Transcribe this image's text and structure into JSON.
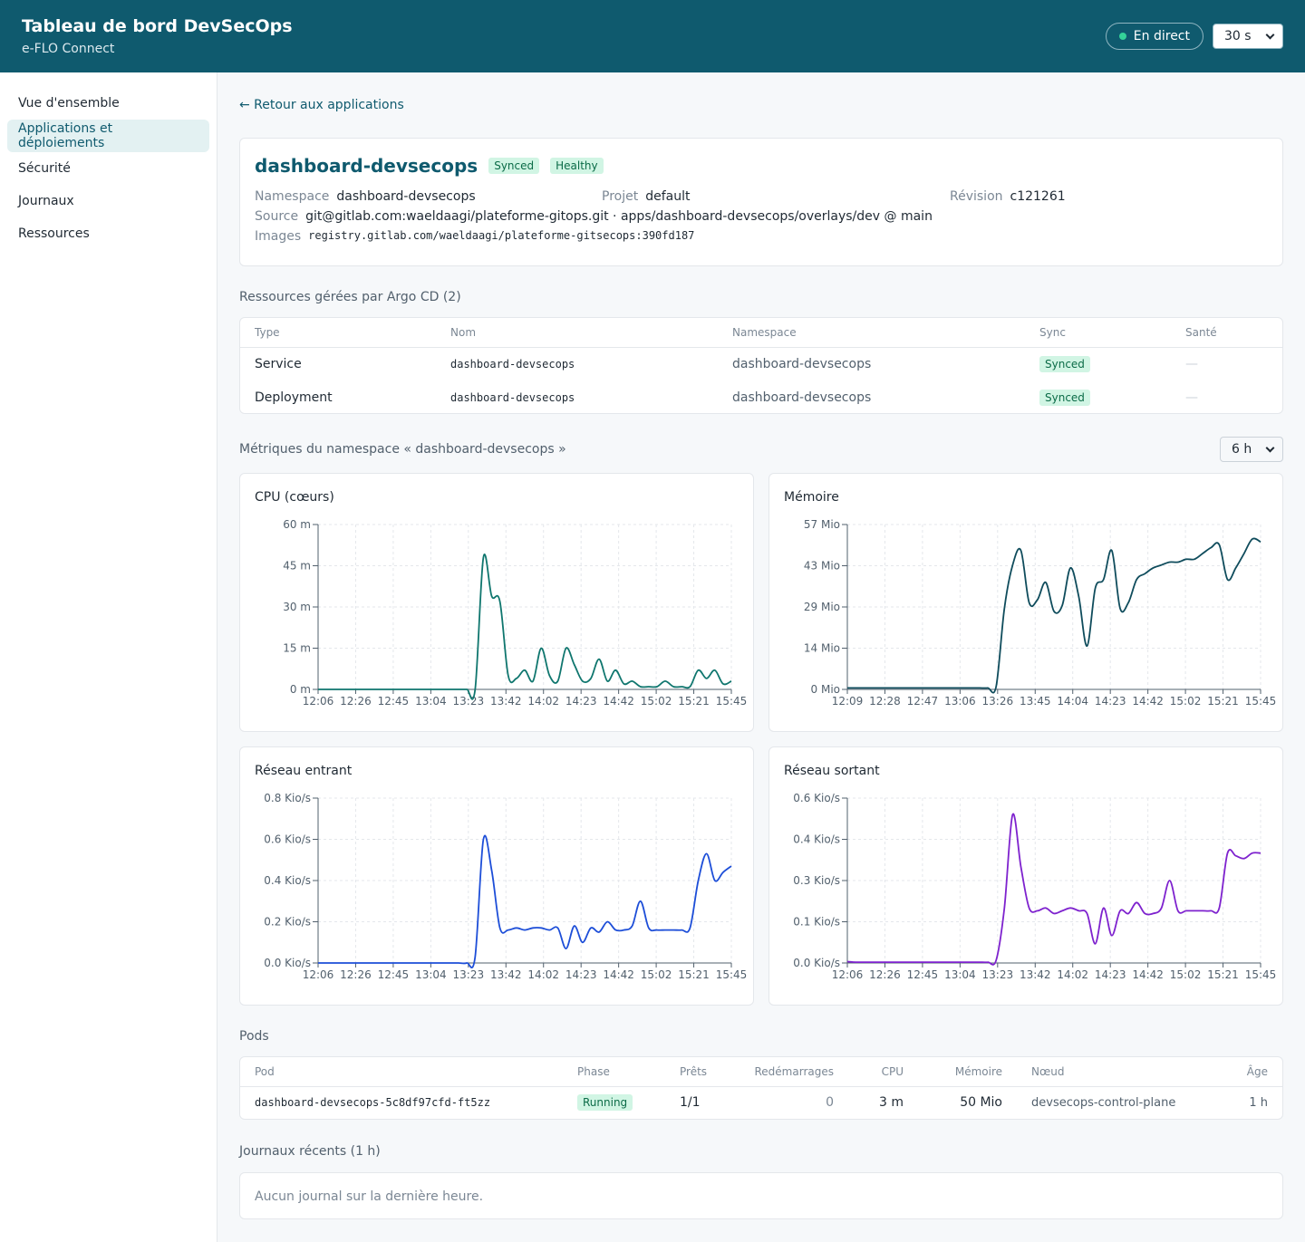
{
  "header": {
    "title": "Tableau de bord DevSecOps",
    "subtitle": "e-FLO Connect",
    "live_label": "En direct",
    "refresh_value": "30 s"
  },
  "sidebar": {
    "items": [
      {
        "label": "Vue d'ensemble",
        "active": false
      },
      {
        "label": "Applications et déploiements",
        "active": true
      },
      {
        "label": "Sécurité",
        "active": false
      },
      {
        "label": "Journaux",
        "active": false
      },
      {
        "label": "Ressources",
        "active": false
      }
    ]
  },
  "back_link": "← Retour aux applications",
  "app": {
    "name": "dashboard-devsecops",
    "sync_badge": "Synced",
    "health_badge": "Healthy",
    "namespace_label": "Namespace",
    "namespace": "dashboard-devsecops",
    "project_label": "Projet",
    "project": "default",
    "revision_label": "Révision",
    "revision": "c121261",
    "source_label": "Source",
    "source": "git@gitlab.com:waeldaagi/plateforme-gitops.git · apps/dashboard-devsecops/overlays/dev @ main",
    "images_label": "Images",
    "images": "registry.gitlab.com/waeldaagi/plateforme-gitsecops:390fd187"
  },
  "resources": {
    "heading": "Ressources gérées par Argo CD (2)",
    "columns": [
      "Type",
      "Nom",
      "Namespace",
      "Sync",
      "Santé"
    ],
    "rows": [
      {
        "type": "Service",
        "name": "dashboard-devsecops",
        "namespace": "dashboard-devsecops",
        "sync": "Synced",
        "health": "—"
      },
      {
        "type": "Deployment",
        "name": "dashboard-devsecops",
        "namespace": "dashboard-devsecops",
        "sync": "Synced",
        "health": "—"
      }
    ]
  },
  "metrics": {
    "heading": "Métriques du namespace « dashboard-devsecops »",
    "range_value": "6 h"
  },
  "chart_data": [
    {
      "type": "line",
      "title": "CPU (cœurs)",
      "color": "#0f766e",
      "yticks": [
        "0 m",
        "15 m",
        "30 m",
        "45 m",
        "60 m"
      ],
      "ylim": [
        0,
        60
      ],
      "xticks": [
        "12:06",
        "12:26",
        "12:45",
        "13:04",
        "13:23",
        "13:42",
        "14:02",
        "14:23",
        "14:42",
        "15:02",
        "15:21",
        "15:45"
      ],
      "x": [
        0,
        2,
        4,
        6,
        8,
        10,
        12,
        14,
        16,
        18,
        20,
        22,
        24,
        26,
        28,
        30,
        32,
        34,
        36,
        38,
        40,
        42,
        44,
        46,
        48,
        50,
        52,
        54,
        56,
        58,
        60,
        62,
        64,
        66,
        68,
        70,
        72,
        74,
        76,
        78,
        80,
        82,
        84,
        86,
        88,
        90,
        92,
        94,
        96,
        98,
        100
      ],
      "values": [
        0,
        0,
        0,
        0,
        0,
        0,
        0,
        0,
        0,
        0,
        0,
        0,
        0,
        0,
        0,
        0,
        0,
        0,
        0,
        0,
        48,
        34,
        32,
        5,
        4,
        7,
        3,
        15,
        5,
        3,
        15,
        9,
        3,
        4,
        11,
        3,
        7,
        2,
        3,
        1,
        1,
        1,
        3,
        1,
        1,
        1,
        7,
        4,
        7,
        2,
        3
      ]
    },
    {
      "type": "line",
      "title": "Mémoire",
      "color": "#0f4c5c",
      "yticks": [
        "0 Mio",
        "14 Mio",
        "29 Mio",
        "43 Mio",
        "57 Mio"
      ],
      "ylim": [
        0,
        57
      ],
      "xticks": [
        "12:09",
        "12:28",
        "12:47",
        "13:06",
        "13:26",
        "13:45",
        "14:04",
        "14:23",
        "14:42",
        "15:02",
        "15:21",
        "15:45"
      ],
      "x": [
        0,
        2,
        4,
        6,
        8,
        10,
        12,
        14,
        16,
        18,
        20,
        22,
        24,
        26,
        28,
        30,
        32,
        34,
        36,
        38,
        40,
        42,
        44,
        46,
        48,
        50,
        52,
        54,
        56,
        58,
        60,
        62,
        64,
        66,
        68,
        70,
        72,
        74,
        76,
        78,
        80,
        82,
        84,
        86,
        88,
        90,
        92,
        94,
        96,
        98,
        100
      ],
      "values": [
        0.5,
        0.5,
        0.5,
        0.5,
        0.5,
        0.5,
        0.5,
        0.5,
        0.5,
        0.5,
        0.5,
        0.5,
        0.5,
        0.5,
        0.5,
        0.5,
        0.5,
        0.5,
        1,
        28,
        43,
        48,
        30,
        31,
        37,
        27,
        29,
        42,
        32,
        15,
        35,
        38,
        48,
        28,
        30,
        38,
        40,
        42,
        43,
        44,
        44,
        45,
        45,
        47,
        49,
        50,
        38,
        42,
        47,
        52,
        51
      ]
    },
    {
      "type": "line",
      "title": "Réseau entrant",
      "color": "#1d4ed8",
      "yticks": [
        "0.0 Kio/s",
        "0.2 Kio/s",
        "0.4 Kio/s",
        "0.6 Kio/s",
        "0.8 Kio/s"
      ],
      "ylim": [
        0,
        0.8
      ],
      "xticks": [
        "12:06",
        "12:26",
        "12:45",
        "13:04",
        "13:23",
        "13:42",
        "14:02",
        "14:23",
        "14:42",
        "15:02",
        "15:21",
        "15:45"
      ],
      "x": [
        0,
        2,
        4,
        6,
        8,
        10,
        12,
        14,
        16,
        18,
        20,
        22,
        24,
        26,
        28,
        30,
        32,
        34,
        36,
        38,
        40,
        42,
        44,
        46,
        48,
        50,
        52,
        54,
        56,
        58,
        60,
        62,
        64,
        66,
        68,
        70,
        72,
        74,
        76,
        78,
        80,
        82,
        84,
        86,
        88,
        90,
        92,
        94,
        96,
        98,
        100
      ],
      "values": [
        0,
        0,
        0,
        0,
        0,
        0,
        0,
        0,
        0,
        0,
        0,
        0,
        0,
        0,
        0,
        0,
        0,
        0,
        0,
        0.03,
        0.6,
        0.45,
        0.17,
        0.16,
        0.17,
        0.16,
        0.17,
        0.17,
        0.16,
        0.17,
        0.07,
        0.18,
        0.1,
        0.17,
        0.15,
        0.2,
        0.16,
        0.16,
        0.18,
        0.3,
        0.17,
        0.16,
        0.16,
        0.16,
        0.16,
        0.17,
        0.4,
        0.53,
        0.4,
        0.44,
        0.47
      ]
    },
    {
      "type": "line",
      "title": "Réseau sortant",
      "color": "#7e22ce",
      "yticks": [
        "0.0 Kio/s",
        "0.1 Kio/s",
        "0.3 Kio/s",
        "0.4 Kio/s",
        "0.6 Kio/s"
      ],
      "ylim": [
        0,
        0.6
      ],
      "xticks": [
        "12:06",
        "12:26",
        "12:45",
        "13:04",
        "13:23",
        "13:42",
        "14:02",
        "14:23",
        "14:42",
        "15:02",
        "15:21",
        "15:45"
      ],
      "x": [
        0,
        2,
        4,
        6,
        8,
        10,
        12,
        14,
        16,
        18,
        20,
        22,
        24,
        26,
        28,
        30,
        32,
        34,
        36,
        38,
        40,
        42,
        44,
        46,
        48,
        50,
        52,
        54,
        56,
        58,
        60,
        62,
        64,
        66,
        68,
        70,
        72,
        74,
        76,
        78,
        80,
        82,
        84,
        86,
        88,
        90,
        92,
        94,
        96,
        98,
        100
      ],
      "values": [
        0.005,
        0.003,
        0.003,
        0.003,
        0.003,
        0.003,
        0.003,
        0.003,
        0.003,
        0.003,
        0.003,
        0.003,
        0.003,
        0.003,
        0.003,
        0.003,
        0.003,
        0.003,
        0.01,
        0.2,
        0.54,
        0.35,
        0.2,
        0.19,
        0.2,
        0.18,
        0.19,
        0.2,
        0.19,
        0.18,
        0.07,
        0.2,
        0.1,
        0.19,
        0.18,
        0.22,
        0.18,
        0.18,
        0.2,
        0.3,
        0.19,
        0.19,
        0.19,
        0.19,
        0.19,
        0.2,
        0.4,
        0.39,
        0.38,
        0.4,
        0.4
      ]
    }
  ],
  "pods": {
    "heading": "Pods",
    "columns": [
      "Pod",
      "Phase",
      "Prêts",
      "Redémarrages",
      "CPU",
      "Mémoire",
      "Nœud",
      "Âge"
    ],
    "rows": [
      {
        "pod": "dashboard-devsecops-5c8df97cfd-ft5zz",
        "phase": "Running",
        "ready": "1/1",
        "restarts": "0",
        "cpu": "3 m",
        "memory": "50 Mio",
        "node": "devsecops-control-plane",
        "age": "1 h"
      }
    ]
  },
  "logs": {
    "heading": "Journaux récents (1 h)",
    "empty": "Aucun journal sur la dernière heure."
  }
}
